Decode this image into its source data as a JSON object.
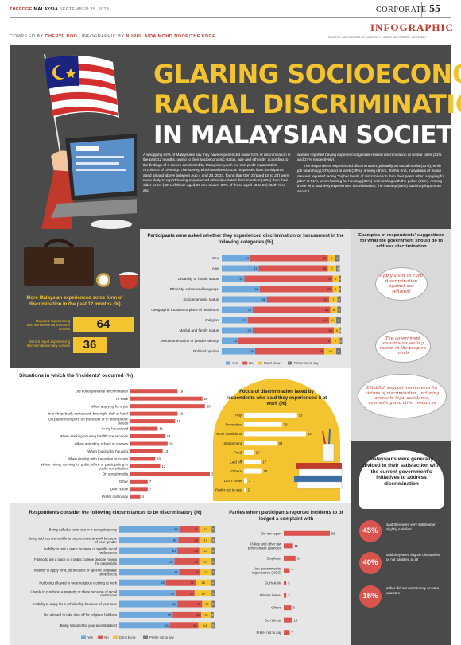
{
  "header": {
    "brand_name": "THEEDGE",
    "brand_region": "MALAYSIA",
    "date": "SEPTEMBER 25, 2023",
    "section": "CORPORATE",
    "page_number": "55",
    "label": "INFOGRAPHIC",
    "source": "SOURCE: ARCHITECTS OF DIVERSITY | GRAPHIC: FREEPIK, VECTEEZY",
    "compiled_prefix": "COMPILED BY",
    "compiled_name": "CHERYL POO",
    "infographic_prefix": "INFOGRAPHIC BY",
    "infographic_name": "NURUL AIDA MOHD NOOR/THE EDGE"
  },
  "hero": {
    "title_line1": "GLARING SOCIOECONOMIC,",
    "title_line2": "RACIAL DISCRIMINATION",
    "title_line3": "IN MALAYSIAN SOCIETY",
    "intro_left": "A whopping 64% of Malaysians say they have experienced some form of discrimination in the past 12 months, owing to their socioeconomic status, age and ethnicity, according to the findings of a survey conducted by Malaysian youth-led non-profit organisation Architects of Diversity. The survey, which analysed 3,238 responses from participants aged 18 and above between Aug 4 and 23, 2023, found that Gen Z (aged 18 to 24) were more likely to report having experienced ethnicity-related discrimination (43%) than their older peers (22% of those aged 60 and above; 23% of those aged 40 to 59). Both men and",
    "intro_right_1": "women reported having experienced gender-related discrimination at similar rates (21% and 27% respectively).",
    "intro_right_2": "The respondents experienced discrimination, primarily on social media (32%), while job searching (30%) and at work (29%), among others. To this end, individuals of Indian descent reported facing \"higher levels of discrimination than their peers when applying for jobs\" at 51%, when looking for housing (35%) and dealing with the police (21%). Among those who said they experienced discrimination, the majority (55%) said they kept mum about it."
  },
  "summary": {
    "title": "More Malaysian experienced some form of discrimination in the past 12 months (%)",
    "row1_label": "Reported experiencing discrimination in at least one domain",
    "row1_value": "64",
    "row2_label": "Did not report experiencing discrimination in any domain",
    "row2_value": "36"
  },
  "suggestions": {
    "title": "Examples of respondents' suggestions for what the government should do to address discrimination",
    "s1": "Apply a law to curb discrimination against our religion!",
    "s2": "The government should stop sealing racism in the people's minds",
    "s3": "Establish support mechanisms for victims of discrimination, including access to legal assistance, counselling and other resources"
  },
  "satisfaction": {
    "title": "Malaysians were generally divided in their satisfaction with the current government's initiatives to address discrimination",
    "items": [
      {
        "pct": "45%",
        "text": "said they were very satisfied or slightly satisfied"
      },
      {
        "pct": "40%",
        "text": "said they were slightly dissatisfied or not satisfied at all"
      },
      {
        "pct": "15%",
        "text": "either did not want to say or were unaware"
      }
    ]
  },
  "colors": {
    "yes": "#6fa8dc",
    "no": "#d9534f",
    "dont_know": "#f4c430",
    "prefer_not": "#7a7a7a",
    "dark_bg": "#4a4a4a",
    "accent_red": "#c0392b",
    "yellow": "#f4c430"
  },
  "legend": {
    "yes": "Yes",
    "no": "No",
    "dont_know": "Don't know",
    "prefer_not": "Prefer not to say"
  },
  "chart_data": [
    {
      "type": "bar",
      "stacked": true,
      "orientation": "horizontal",
      "title": "Participants were asked whether they experienced discrimination or harassment in the following categories (%)",
      "categories": [
        "Sex",
        "Age",
        "Disability or health status",
        "Ethnicity, colour and language",
        "Socioeconomic status",
        "Geographic location or place of residence",
        "Religion",
        "Marital and family status",
        "Sexual orientation or gender identity",
        "Political opinion"
      ],
      "series": [
        {
          "name": "Yes",
          "values": [
            24,
            31,
            19,
            32,
            38,
            26,
            22,
            26,
            14,
            28
          ]
        },
        {
          "name": "No",
          "values": [
            65,
            58,
            74,
            61,
            52,
            65,
            68,
            68,
            78,
            58
          ]
        },
        {
          "name": "Don't know",
          "values": [
            6,
            7,
            5,
            5,
            7,
            6,
            6,
            5,
            7,
            10
          ]
        },
        {
          "name": "Prefer not to say",
          "values": [
            4,
            3,
            2,
            2,
            3,
            3,
            4,
            1,
            2,
            4
          ]
        }
      ],
      "legend": "bottom"
    },
    {
      "type": "bar",
      "orientation": "horizontal",
      "title": "Situations in which the 'incidents' occurred (%)",
      "categories": [
        "Did not experience discrimination",
        "At work",
        "When applying for a job",
        "In a shop, bank, restaurant, bar, night club or hotel",
        "On public transport, on the street or in other public places",
        "In my household",
        "When seeking or using healthcare services",
        "When attending school or classes",
        "When looking for housing",
        "When dealing with the police or courts",
        "When voting, running for public office or participating in public consultation",
        "On social media",
        "Other",
        "Don't know",
        "Prefer not to say"
      ],
      "values": [
        19,
        29,
        30,
        19,
        18,
        11,
        14,
        15,
        13,
        10,
        12,
        32,
        7,
        7,
        4
      ]
    },
    {
      "type": "bar",
      "orientation": "horizontal",
      "title": "Focus of discrimination faced by respondents who said they experienced it at work (%)",
      "categories": [
        "Pay",
        "Promotion",
        "Work conditions",
        "Harassment",
        "Fired",
        "Laid off",
        "Others",
        "Don't know",
        "Prefer not to say"
      ],
      "values": [
        53,
        38,
        62,
        33,
        10,
        17,
        18,
        3,
        2
      ]
    },
    {
      "type": "bar",
      "stacked": true,
      "orientation": "horizontal",
      "title": "Respondents consider the following circumstances to be discriminatory (%)",
      "categories": [
        "Being called a racial slur in a derogatory way",
        "Being told you are unable to be promoted at work because of your gender",
        "Inability to rent a place because of specific racial preferences",
        "Failing to get a place in a public college despite having the credentials",
        "Inability to apply for a job because of specific language preferences",
        "Not being allowed to wear religious clothing at work",
        "Unable to purchase a property or share because of racial restrictions",
        "Inability to apply for a scholarship because of your race",
        "Not allowed to take time off for religious holidays",
        "Being ridiculed for your accent/dialect"
      ],
      "series": [
        {
          "name": "Yes",
          "values": [
            63,
            62,
            61,
            58,
            63,
            49,
            59,
            61,
            56,
            53
          ]
        },
        {
          "name": "No",
          "values": [
            21,
            22,
            23,
            26,
            22,
            31,
            20,
            26,
            30,
            30
          ]
        },
        {
          "name": "Don't know",
          "values": [
            13,
            13,
            13,
            13,
            12,
            16,
            18,
            10,
            10,
            14
          ]
        },
        {
          "name": "Prefer not to say",
          "values": [
            3,
            3,
            3,
            3,
            3,
            4,
            3,
            3,
            3,
            3
          ]
        }
      ],
      "legend": "bottom"
    },
    {
      "type": "bar",
      "orientation": "horizontal",
      "title": "Parties whom participants reported incidents to or lodged a complaint with",
      "categories": [
        "Did not report",
        "Police and other law enforcement agencies",
        "Employer",
        "Non-governmental organisation (NGO)",
        "SUHAKAM",
        "Private lawyer",
        "Others",
        "Don't know",
        "Prefer not to say"
      ],
      "values": [
        55,
        11,
        14,
        7,
        3,
        3,
        9,
        10,
        7
      ]
    }
  ]
}
